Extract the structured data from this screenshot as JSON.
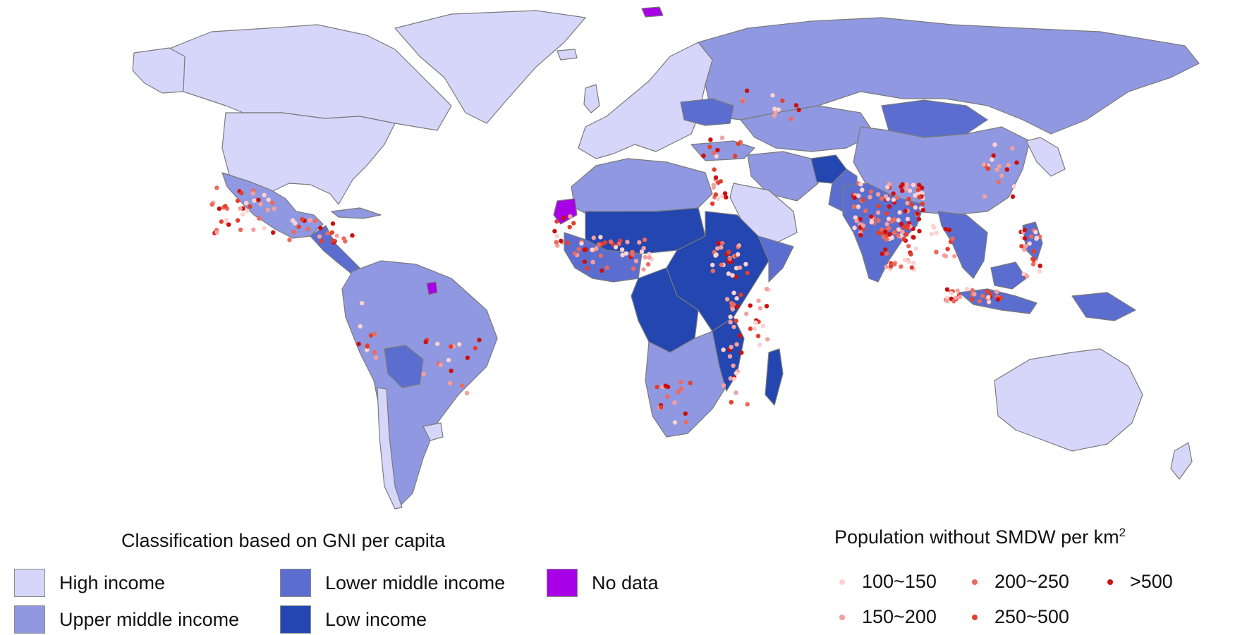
{
  "income_legend": {
    "title": "Classification based on GNI per capita",
    "items": [
      {
        "key": "high",
        "label": "High income",
        "color": "#d6d6fa"
      },
      {
        "key": "upper_middle",
        "label": "Upper middle income",
        "color": "#8f98e0"
      },
      {
        "key": "lower_middle",
        "label": "Lower middle income",
        "color": "#5b6ed0"
      },
      {
        "key": "low",
        "label": "Low income",
        "color": "#2346b0"
      },
      {
        "key": "no_data",
        "label": "No data",
        "color": "#a800e6"
      }
    ]
  },
  "density_legend": {
    "title": "Population without SMDW per km",
    "title_sup": "2",
    "items": [
      {
        "key": "d1",
        "label": "100~150",
        "color": "#fcd2d2"
      },
      {
        "key": "d2",
        "label": "150~200",
        "color": "#f4a0a0"
      },
      {
        "key": "d3",
        "label": "200~250",
        "color": "#ec6a5e"
      },
      {
        "key": "d4",
        "label": "250~500",
        "color": "#e2402e"
      },
      {
        "key": "d5",
        "label": ">500",
        "color": "#cc0f0f"
      }
    ]
  },
  "map_colors": {
    "border": "#7a7a7a",
    "ocean": "#ffffff"
  }
}
